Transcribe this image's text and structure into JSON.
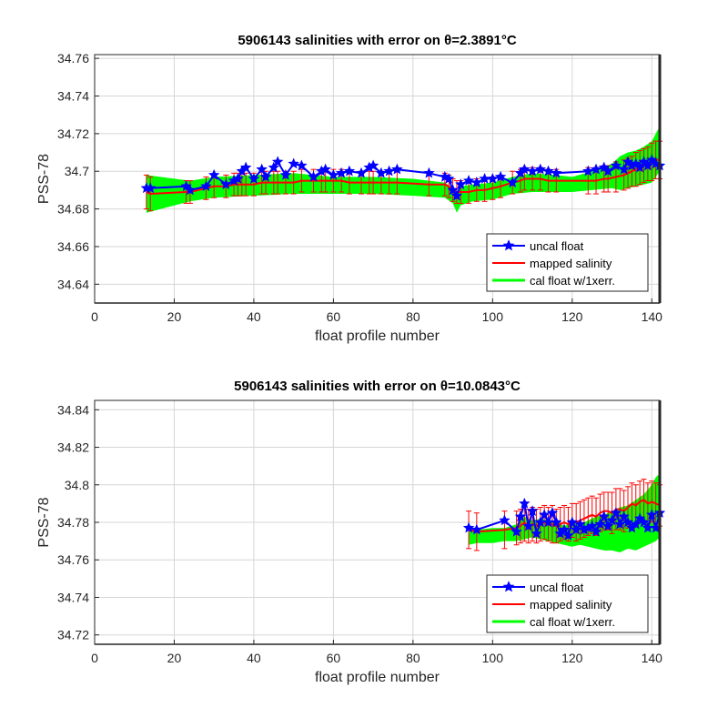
{
  "chart_data": [
    {
      "type": "line",
      "title": "5906143 salinities with error on θ=2.3891°C",
      "xlabel": "float profile number",
      "ylabel": "PSS-78",
      "xlim": [
        0,
        142
      ],
      "ylim": [
        34.63,
        34.762
      ],
      "xticks": [
        0,
        20,
        40,
        60,
        80,
        100,
        120,
        140
      ],
      "xtick_labels": [
        "0",
        "20",
        "40",
        "60",
        "80",
        "100",
        "120",
        "140"
      ],
      "yticks": [
        34.64,
        34.66,
        34.68,
        34.7,
        34.72,
        34.74,
        34.76
      ],
      "ytick_labels": [
        "34.64",
        "34.66",
        "34.68",
        "34.7",
        "34.72",
        "34.74",
        "34.76"
      ],
      "grid": true,
      "legend_position": "bottom-right",
      "legend": [
        "uncal float",
        "mapped salinity",
        "cal float w/1xerr."
      ],
      "colors": {
        "uncal": "#0000ff",
        "mapped": "#ff0000",
        "cal": "#00ff00"
      },
      "series": [
        {
          "name": "uncal float",
          "x": [
            13,
            14,
            23,
            24,
            28,
            30,
            33,
            35,
            36,
            37,
            38,
            40,
            42,
            43,
            45,
            46,
            48,
            50,
            52,
            55,
            57,
            58,
            60,
            62,
            64,
            67,
            69,
            70,
            72,
            74,
            76,
            84,
            88,
            89,
            90,
            91,
            92,
            94,
            96,
            98,
            100,
            102,
            105,
            107,
            108,
            110,
            112,
            114,
            116,
            124,
            126,
            128,
            129,
            131,
            133,
            134,
            135,
            136,
            137,
            138,
            139,
            140,
            141,
            142
          ],
          "y": [
            34.691,
            34.691,
            34.692,
            34.69,
            34.692,
            34.698,
            34.693,
            34.695,
            34.696,
            34.7,
            34.702,
            34.696,
            34.701,
            34.697,
            34.702,
            34.705,
            34.698,
            34.704,
            34.703,
            34.697,
            34.7,
            34.701,
            34.698,
            34.699,
            34.7,
            34.699,
            34.702,
            34.703,
            34.699,
            34.7,
            34.701,
            34.699,
            34.697,
            34.696,
            34.69,
            34.687,
            34.693,
            34.695,
            34.694,
            34.696,
            34.696,
            34.697,
            34.694,
            34.699,
            34.701,
            34.7,
            34.701,
            34.7,
            34.699,
            34.7,
            34.701,
            34.702,
            34.7,
            34.703,
            34.701,
            34.705,
            34.703,
            34.704,
            34.702,
            34.705,
            34.703,
            34.706,
            34.704,
            34.703
          ]
        },
        {
          "name": "mapped salinity",
          "x": [
            13,
            14,
            23,
            24,
            28,
            30,
            33,
            35,
            36,
            37,
            38,
            40,
            42,
            43,
            45,
            46,
            48,
            50,
            52,
            55,
            57,
            58,
            60,
            62,
            64,
            67,
            69,
            70,
            72,
            74,
            76,
            84,
            88,
            89,
            90,
            91,
            92,
            94,
            96,
            98,
            100,
            102,
            105,
            107,
            108,
            110,
            112,
            114,
            116,
            124,
            126,
            128,
            129,
            131,
            133,
            134,
            135,
            136,
            137,
            138,
            139,
            140,
            141,
            142
          ],
          "y": [
            34.689,
            34.688,
            34.689,
            34.689,
            34.691,
            34.692,
            34.692,
            34.693,
            34.693,
            34.693,
            34.693,
            34.693,
            34.694,
            34.694,
            34.694,
            34.694,
            34.694,
            34.694,
            34.695,
            34.695,
            34.695,
            34.695,
            34.695,
            34.695,
            34.694,
            34.694,
            34.694,
            34.694,
            34.694,
            34.694,
            34.694,
            34.693,
            34.693,
            34.692,
            34.69,
            34.689,
            34.689,
            34.689,
            34.69,
            34.69,
            34.691,
            34.692,
            34.694,
            34.695,
            34.696,
            34.696,
            34.696,
            34.695,
            34.695,
            34.695,
            34.695,
            34.696,
            34.696,
            34.697,
            34.698,
            34.699,
            34.7,
            34.701,
            34.702,
            34.703,
            34.704,
            34.705,
            34.706,
            34.706
          ],
          "error": [
            0.009,
            0.009,
            0.006,
            0.006,
            0.006,
            0.006,
            0.006,
            0.006,
            0.006,
            0.006,
            0.006,
            0.006,
            0.006,
            0.006,
            0.006,
            0.006,
            0.006,
            0.006,
            0.006,
            0.006,
            0.006,
            0.006,
            0.006,
            0.006,
            0.006,
            0.006,
            0.006,
            0.006,
            0.006,
            0.006,
            0.006,
            0.006,
            0.006,
            0.006,
            0.006,
            0.006,
            0.006,
            0.006,
            0.006,
            0.006,
            0.006,
            0.006,
            0.006,
            0.006,
            0.006,
            0.006,
            0.006,
            0.006,
            0.006,
            0.007,
            0.007,
            0.007,
            0.007,
            0.008,
            0.008,
            0.008,
            0.008,
            0.009,
            0.009,
            0.009,
            0.009,
            0.01,
            0.01,
            0.01
          ]
        },
        {
          "name": "cal float w/1xerr.",
          "x": [
            13,
            24,
            30,
            40,
            50,
            60,
            70,
            80,
            88,
            90,
            91,
            92,
            95,
            100,
            105,
            110,
            116,
            120,
            125,
            130,
            132,
            134,
            136,
            138,
            140,
            141,
            142
          ],
          "upper": [
            34.698,
            34.695,
            34.697,
            34.698,
            34.699,
            34.697,
            34.697,
            34.696,
            34.694,
            34.691,
            34.689,
            34.692,
            34.693,
            34.694,
            34.697,
            34.699,
            34.698,
            34.697,
            34.7,
            34.704,
            34.708,
            34.71,
            34.711,
            34.713,
            34.716,
            34.72,
            34.724
          ],
          "lower": [
            34.678,
            34.684,
            34.686,
            34.687,
            34.688,
            34.688,
            34.688,
            34.687,
            34.686,
            34.683,
            34.678,
            34.682,
            34.684,
            34.685,
            34.688,
            34.689,
            34.689,
            34.689,
            34.69,
            34.691,
            34.69,
            34.691,
            34.692,
            34.693,
            34.694,
            34.697,
            34.7
          ]
        }
      ]
    },
    {
      "type": "line",
      "title": "5906143 salinities with error on θ=10.0843°C",
      "xlabel": "float profile number",
      "ylabel": "PSS-78",
      "xlim": [
        0,
        142
      ],
      "ylim": [
        34.715,
        34.845
      ],
      "xticks": [
        0,
        20,
        40,
        60,
        80,
        100,
        120,
        140
      ],
      "xtick_labels": [
        "0",
        "20",
        "40",
        "60",
        "80",
        "100",
        "120",
        "140"
      ],
      "yticks": [
        34.72,
        34.74,
        34.76,
        34.78,
        34.8,
        34.82,
        34.84
      ],
      "ytick_labels": [
        "34.72",
        "34.74",
        "34.76",
        "34.78",
        "34.8",
        "34.82",
        "34.84"
      ],
      "grid": true,
      "legend_position": "bottom-right",
      "legend": [
        "uncal float",
        "mapped salinity",
        "cal float w/1xerr."
      ],
      "colors": {
        "uncal": "#0000ff",
        "mapped": "#ff0000",
        "cal": "#00ff00"
      },
      "series": [
        {
          "name": "uncal float",
          "x": [
            94,
            96,
            103,
            106,
            107,
            108,
            109,
            110,
            111,
            112,
            113,
            114,
            115,
            116,
            117,
            118,
            119,
            120,
            121,
            122,
            123,
            124,
            125,
            126,
            127,
            128,
            129,
            130,
            131,
            132,
            133,
            134,
            135,
            136,
            137,
            138,
            139,
            140,
            141,
            142
          ],
          "y": [
            34.777,
            34.776,
            34.781,
            34.775,
            34.783,
            34.79,
            34.778,
            34.786,
            34.774,
            34.78,
            34.784,
            34.78,
            34.785,
            34.78,
            34.774,
            34.776,
            34.773,
            34.78,
            34.776,
            34.779,
            34.776,
            34.777,
            34.778,
            34.775,
            34.779,
            34.783,
            34.778,
            34.781,
            34.785,
            34.779,
            34.783,
            34.78,
            34.777,
            34.779,
            34.782,
            34.78,
            34.777,
            34.784,
            34.777,
            34.785
          ]
        },
        {
          "name": "mapped salinity",
          "x": [
            94,
            96,
            103,
            106,
            107,
            108,
            109,
            110,
            111,
            112,
            113,
            114,
            115,
            116,
            117,
            118,
            119,
            120,
            121,
            122,
            123,
            124,
            125,
            126,
            127,
            128,
            129,
            130,
            131,
            132,
            133,
            134,
            135,
            136,
            137,
            138,
            139,
            140,
            141,
            142
          ],
          "y": [
            34.776,
            34.775,
            34.776,
            34.777,
            34.778,
            34.78,
            34.778,
            34.779,
            34.778,
            34.779,
            34.78,
            34.779,
            34.779,
            34.778,
            34.779,
            34.78,
            34.779,
            34.781,
            34.78,
            34.781,
            34.782,
            34.783,
            34.784,
            34.783,
            34.785,
            34.786,
            34.786,
            34.785,
            34.787,
            34.787,
            34.786,
            34.788,
            34.79,
            34.789,
            34.791,
            34.792,
            34.79,
            34.791,
            34.79,
            34.789
          ],
          "error": [
            0.01,
            0.01,
            0.01,
            0.009,
            0.009,
            0.01,
            0.009,
            0.009,
            0.009,
            0.009,
            0.009,
            0.009,
            0.01,
            0.009,
            0.009,
            0.009,
            0.009,
            0.009,
            0.01,
            0.01,
            0.01,
            0.01,
            0.01,
            0.01,
            0.01,
            0.01,
            0.01,
            0.011,
            0.011,
            0.011,
            0.011,
            0.011,
            0.011,
            0.011,
            0.011,
            0.011,
            0.011,
            0.011,
            0.011,
            0.011
          ]
        },
        {
          "name": "cal float w/1xerr.",
          "x": [
            94,
            96,
            100,
            103,
            106,
            108,
            110,
            112,
            114,
            116,
            118,
            120,
            122,
            124,
            126,
            128,
            130,
            132,
            134,
            136,
            138,
            140,
            141,
            142
          ],
          "upper": [
            34.775,
            34.776,
            34.777,
            34.777,
            34.779,
            34.783,
            34.781,
            34.782,
            34.781,
            34.781,
            34.778,
            34.78,
            34.779,
            34.781,
            34.783,
            34.784,
            34.786,
            34.788,
            34.789,
            34.792,
            34.795,
            34.8,
            34.804,
            34.806
          ],
          "lower": [
            34.768,
            34.769,
            34.769,
            34.77,
            34.77,
            34.771,
            34.772,
            34.771,
            34.77,
            34.769,
            34.768,
            34.767,
            34.768,
            34.767,
            34.766,
            34.765,
            34.765,
            34.764,
            34.766,
            34.765,
            34.767,
            34.769,
            34.77,
            34.772
          ]
        }
      ]
    }
  ]
}
